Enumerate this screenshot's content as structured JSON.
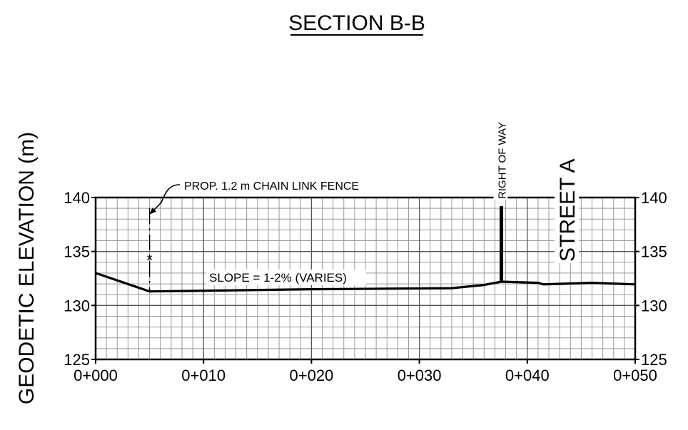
{
  "title": "SECTION B-B",
  "ylabel": "GEODETIC ELEVATION (m)",
  "chart_data": {
    "type": "line",
    "title": "SECTION B-B",
    "xlabel": "",
    "ylabel": "GEODETIC ELEVATION (m)",
    "x_range_m": [
      0,
      50
    ],
    "y_range_m": [
      125,
      140
    ],
    "x_ticks": [
      "0+000",
      "0+010",
      "0+020",
      "0+030",
      "0+040",
      "0+050"
    ],
    "x_tick_values": [
      0,
      10,
      20,
      30,
      40,
      50
    ],
    "y_ticks": [
      "125",
      "130",
      "135",
      "140"
    ],
    "y_tick_values": [
      125,
      130,
      135,
      140
    ],
    "grid": true,
    "series": [
      {
        "points": [
          [
            0,
            133.0
          ],
          [
            5,
            131.3
          ],
          [
            20,
            131.5
          ],
          [
            33,
            131.6
          ],
          [
            36,
            131.9
          ],
          [
            37.6,
            132.2
          ],
          [
            41,
            132.1
          ],
          [
            41.5,
            131.95
          ],
          [
            46,
            132.1
          ],
          [
            50,
            131.95
          ]
        ]
      }
    ],
    "annotations": [
      {
        "text": "PROP. 1.2 m CHAIN LINK FENCE",
        "x": 5,
        "y": 134.5
      },
      {
        "text": "SLOPE = 1-2% (VARIES)",
        "x": 20,
        "y": 132.5
      },
      {
        "text": "RIGHT OF WAY",
        "x": 37.6,
        "y": 140
      },
      {
        "text": "STREET A",
        "x": 43.5,
        "y": 136
      }
    ],
    "fence": {
      "x": 5,
      "y_bottom": 131.3,
      "y_top": 139
    },
    "right_of_way_post": {
      "x": 37.6,
      "y_bottom": 132.2,
      "y_top": 139.2
    }
  }
}
